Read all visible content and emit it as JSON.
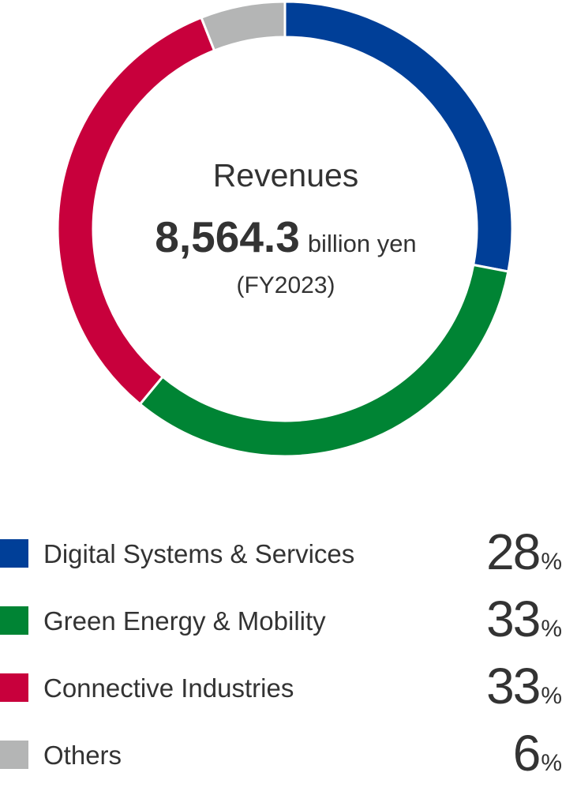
{
  "chart_data": {
    "type": "pie",
    "style": "donut",
    "center": {
      "title": "Revenues",
      "value": "8,564.3",
      "unit": "billion yen",
      "period": "(FY2023)"
    },
    "categories": [
      "Digital Systems & Services",
      "Green Energy & Mobility",
      "Connective Industries",
      "Others"
    ],
    "values": [
      28,
      33,
      33,
      6
    ],
    "value_suffix": "%",
    "colors": [
      "#003f98",
      "#008434",
      "#c8003c",
      "#b4b5b5"
    ],
    "legend_position": "bottom"
  }
}
